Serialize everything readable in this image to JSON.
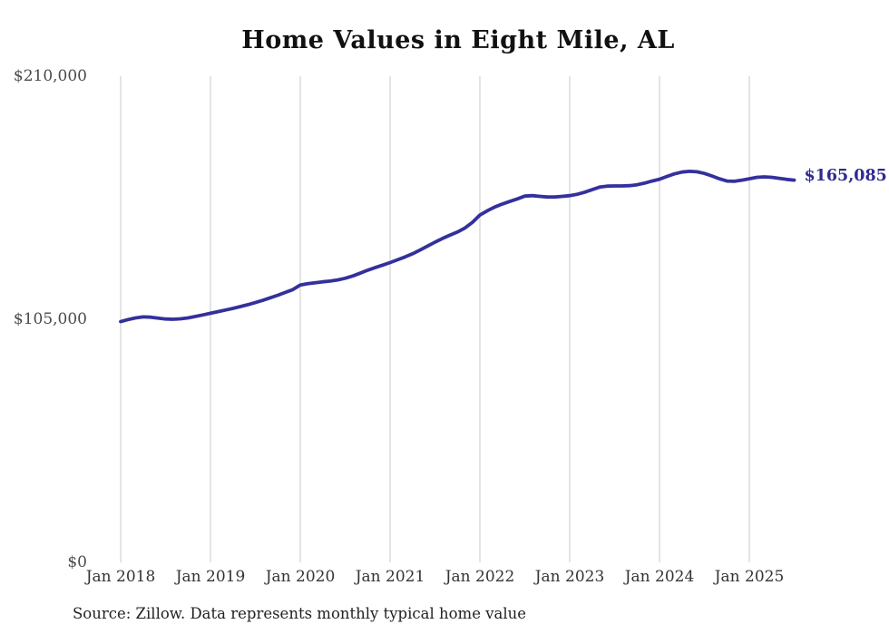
{
  "chart_data": {
    "type": "line",
    "title": "Home Values in Eight Mile, AL",
    "series_name": "Monthly typical home value",
    "x": [
      "2018-01",
      "2018-02",
      "2018-03",
      "2018-04",
      "2018-05",
      "2018-06",
      "2018-07",
      "2018-08",
      "2018-09",
      "2018-10",
      "2018-11",
      "2018-12",
      "2019-01",
      "2019-02",
      "2019-03",
      "2019-04",
      "2019-05",
      "2019-06",
      "2019-07",
      "2019-08",
      "2019-09",
      "2019-10",
      "2019-11",
      "2019-12",
      "2020-01",
      "2020-02",
      "2020-03",
      "2020-04",
      "2020-05",
      "2020-06",
      "2020-07",
      "2020-08",
      "2020-09",
      "2020-10",
      "2020-11",
      "2020-12",
      "2021-01",
      "2021-02",
      "2021-03",
      "2021-04",
      "2021-05",
      "2021-06",
      "2021-07",
      "2021-08",
      "2021-09",
      "2021-10",
      "2021-11",
      "2021-12",
      "2022-01",
      "2022-02",
      "2022-03",
      "2022-04",
      "2022-05",
      "2022-06",
      "2022-07",
      "2022-08",
      "2022-09",
      "2022-10",
      "2022-11",
      "2022-12",
      "2023-01",
      "2023-02",
      "2023-03",
      "2023-04",
      "2023-05",
      "2023-06",
      "2023-07",
      "2023-08",
      "2023-09",
      "2023-10",
      "2023-11",
      "2023-12",
      "2024-01",
      "2024-02",
      "2024-03",
      "2024-04",
      "2024-05",
      "2024-06",
      "2024-07",
      "2024-08",
      "2024-09",
      "2024-10",
      "2024-11",
      "2024-12",
      "2025-01",
      "2025-02",
      "2025-03",
      "2025-04",
      "2025-05",
      "2025-06",
      "2025-07"
    ],
    "values": [
      104000,
      104900,
      105600,
      106000,
      105900,
      105500,
      105100,
      105000,
      105200,
      105600,
      106200,
      106900,
      107600,
      108300,
      109000,
      109700,
      110500,
      111300,
      112200,
      113200,
      114300,
      115400,
      116600,
      117800,
      119800,
      120400,
      120800,
      121200,
      121500,
      122000,
      122700,
      123700,
      124900,
      126200,
      127300,
      128400,
      129500,
      130700,
      131900,
      133300,
      134900,
      136600,
      138300,
      139900,
      141300,
      142700,
      144400,
      146900,
      150000,
      151900,
      153500,
      154800,
      155900,
      157000,
      158200,
      158400,
      158100,
      157800,
      157800,
      158100,
      158400,
      159000,
      159900,
      161000,
      162100,
      162500,
      162600,
      162600,
      162700,
      163100,
      163800,
      164700,
      165500,
      166700,
      167800,
      168600,
      168900,
      168700,
      168000,
      166900,
      165700,
      164700,
      164600,
      165100,
      165700,
      166300,
      166500,
      166300,
      165900,
      165400,
      165085
    ],
    "x_ticks": [
      "Jan 2018",
      "Jan 2019",
      "Jan 2020",
      "Jan 2021",
      "Jan 2022",
      "Jan 2023",
      "Jan 2024",
      "Jan 2025"
    ],
    "y_ticks": [
      {
        "value": 0,
        "label": "$0"
      },
      {
        "value": 105000,
        "label": "$105,000"
      },
      {
        "value": 210000,
        "label": "$210,000"
      }
    ],
    "ylim": [
      0,
      210000
    ],
    "end_label": "$165,085",
    "last_value": 165085,
    "line_color": "#34309c",
    "end_label_color": "#2e2b90",
    "grid_color": "#c9c9c9",
    "grid": "vertical-only",
    "legend": "none",
    "xlabel": "",
    "ylabel": ""
  },
  "footer": {
    "source": "Source: Zillow. Data represents monthly typical home value"
  }
}
